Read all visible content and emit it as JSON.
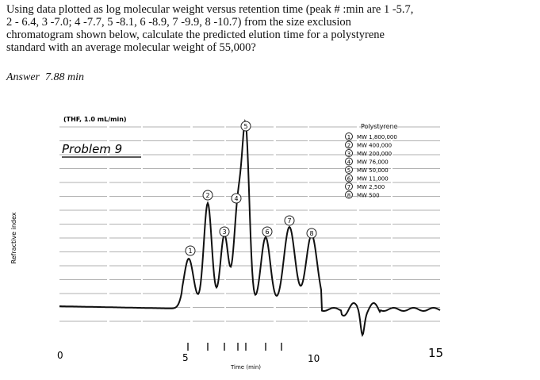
{
  "question_lines": [
    "Using data plotted as log molecular weight versus retention time (peak # :min are 1 -5.7,",
    "2 - 6.4, 3 -7.0; 4 -7.7, 5 -8.1, 6 -8.9, 7 -9.9, 8 -10.7) from the size exclusion",
    "chromatogram shown below, calculate the predicted elution time for a polystyrene",
    "standard with an average molecular weight of 55,000?"
  ],
  "answer": {
    "label": "Answer",
    "value": "7.88 min"
  },
  "figure": {
    "conditions": "(THF, 1.0 mL/min)",
    "note": "Problem 9",
    "y_label": "Refractive index",
    "x_label": "Time (min)",
    "x_ticks": [
      "0",
      "5",
      "10",
      "15"
    ],
    "legend_title": "Polystyrene",
    "legend": [
      "MW 1,800,000",
      "MW 400,000",
      "MW 200,000",
      "MW 76,000",
      "MW 50,000",
      "MW 11,000",
      "MW 2,500",
      "MW 500"
    ],
    "peak_labels": [
      "1",
      "2",
      "3",
      "4",
      "5",
      "6",
      "7",
      "8"
    ]
  }
}
